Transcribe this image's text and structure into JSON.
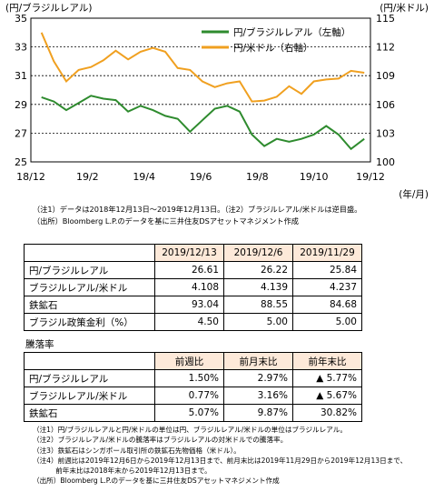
{
  "chart_data": {
    "type": "line",
    "left_axis_label": "(円/ブラジルレアル)",
    "right_axis_label": "(円/米ドル)",
    "x_unit_label": "(年/月)",
    "x_ticks": [
      "18/12",
      "19/2",
      "19/4",
      "19/6",
      "19/8",
      "19/10",
      "19/12"
    ],
    "left_ylim": [
      25,
      35
    ],
    "left_ticks": [
      "25",
      "27",
      "29",
      "31",
      "33",
      "35"
    ],
    "right_ylim": [
      100,
      115
    ],
    "right_ticks": [
      "100",
      "103",
      "106",
      "109",
      "112",
      "115"
    ],
    "legend": {
      "position": "top-right"
    },
    "series": [
      {
        "name": "円/ブラジルレアル（左軸）",
        "axis": "left",
        "color": "#2e8b2e",
        "x": [
          "2018-12-13",
          "2018-12-27",
          "2019-01-10",
          "2019-01-24",
          "2019-02-07",
          "2019-02-21",
          "2019-03-07",
          "2019-03-21",
          "2019-04-04",
          "2019-04-18",
          "2019-05-02",
          "2019-05-16",
          "2019-05-30",
          "2019-06-13",
          "2019-06-27",
          "2019-07-11",
          "2019-07-25",
          "2019-08-08",
          "2019-08-22",
          "2019-09-05",
          "2019-09-19",
          "2019-10-03",
          "2019-10-17",
          "2019-10-31",
          "2019-11-14",
          "2019-11-28",
          "2019-12-13"
        ],
        "values": [
          29.5,
          29.2,
          28.6,
          29.1,
          29.6,
          29.4,
          29.3,
          28.5,
          28.9,
          28.6,
          28.2,
          28.0,
          27.1,
          27.9,
          28.7,
          28.9,
          28.5,
          26.9,
          26.1,
          26.6,
          26.4,
          26.6,
          26.9,
          27.5,
          26.9,
          25.9,
          26.6
        ]
      },
      {
        "name": "円/米ドル（右軸）",
        "axis": "right",
        "color": "#f0a020",
        "x": [
          "2018-12-13",
          "2018-12-27",
          "2019-01-10",
          "2019-01-24",
          "2019-02-07",
          "2019-02-21",
          "2019-03-07",
          "2019-03-21",
          "2019-04-04",
          "2019-04-18",
          "2019-05-02",
          "2019-05-16",
          "2019-05-30",
          "2019-06-13",
          "2019-06-27",
          "2019-07-11",
          "2019-07-25",
          "2019-08-08",
          "2019-08-22",
          "2019-09-05",
          "2019-09-19",
          "2019-10-03",
          "2019-10-17",
          "2019-10-31",
          "2019-11-14",
          "2019-11-28",
          "2019-12-13"
        ],
        "values": [
          113.5,
          110.5,
          108.4,
          109.6,
          109.9,
          110.6,
          111.6,
          110.7,
          111.5,
          111.9,
          111.5,
          109.8,
          109.6,
          108.4,
          107.8,
          108.2,
          108.4,
          106.3,
          106.4,
          106.8,
          107.9,
          107.1,
          108.4,
          108.6,
          108.7,
          109.5,
          109.3
        ]
      }
    ]
  },
  "notes": [
    "（注1）データは2018年12月13日～2019年12月13日。（注2）ブラジルレアル/米ドルは逆目盛。",
    "（出所）Bloomberg L.P.のデータを基に三井住友DSアセットマネジメント作成"
  ],
  "table1": {
    "headers": [
      "2019/12/13",
      "2019/12/6",
      "2019/11/29"
    ],
    "rows": [
      {
        "label": "円/ブラジルレアル",
        "values": [
          "26.61",
          "26.22",
          "25.84"
        ]
      },
      {
        "label": "ブラジルレアル/米ドル",
        "values": [
          "4.108",
          "4.139",
          "4.237"
        ]
      },
      {
        "label": "鉄鉱石",
        "values": [
          "93.04",
          "88.55",
          "84.68"
        ]
      },
      {
        "label": "ブラジル政策金利（%）",
        "values": [
          "4.50",
          "5.00",
          "5.00"
        ]
      }
    ]
  },
  "subtitle": "騰落率",
  "table2": {
    "headers": [
      "前週比",
      "前月末比",
      "前年末比"
    ],
    "rows": [
      {
        "label": "円/ブラジルレアル",
        "values": [
          "1.50%",
          "2.97%",
          "▲ 5.77%"
        ]
      },
      {
        "label": "ブラジルレアル/米ドル",
        "values": [
          "0.77%",
          "3.16%",
          "▲ 5.67%"
        ]
      },
      {
        "label": "鉄鉱石",
        "values": [
          "5.07%",
          "9.87%",
          "30.82%"
        ]
      }
    ]
  },
  "bottom_notes": [
    "（注1）円/ブラジルレアルと円/米ドルの単位は円、ブラジルレアル/米ドルの単位はブラジルレアル。",
    "（注2）ブラジルレアル/米ドルの騰落率はブラジルレアルの対米ドルでの騰落率。",
    "（注3）鉄鉱石はシンガポール取引所の鉄鉱石先物価格（米ドル）。",
    "（注4）前週比は2019年12月6日から2019年12月13日まで、前月末比は2019年11月29日から2019年12月13日まで、",
    "　　　 前年末比は2018年末から2019年12月13日まで。",
    "（出所）Bloomberg L.P.のデータを基に三井住友DSアセットマネジメント作成"
  ]
}
